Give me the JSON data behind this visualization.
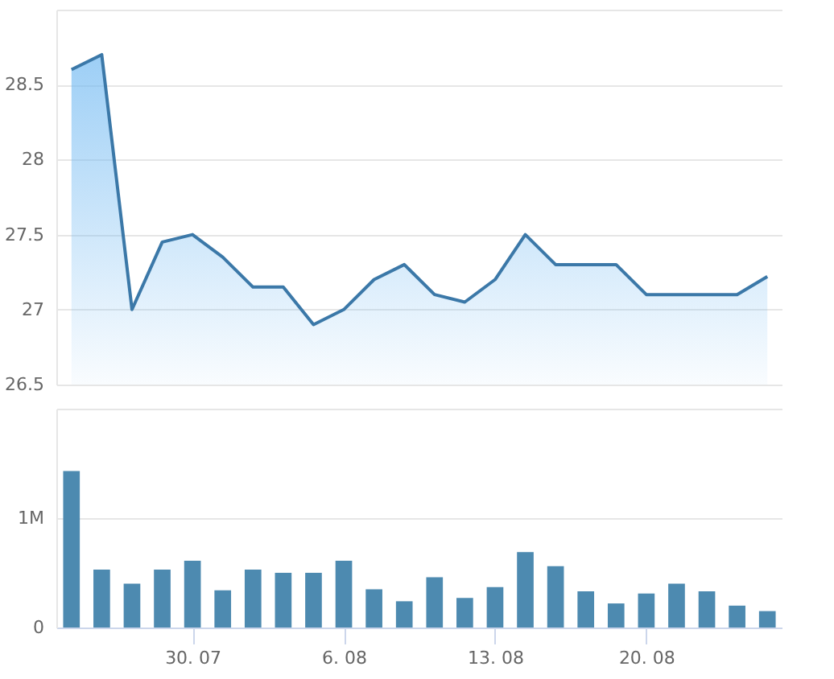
{
  "chart_data": [
    {
      "type": "area",
      "categories": [
        null,
        null,
        null,
        null,
        "30. 07",
        null,
        null,
        null,
        null,
        "6. 08",
        null,
        null,
        null,
        null,
        "13. 08",
        null,
        null,
        null,
        null,
        "20. 08",
        null,
        null,
        null,
        null
      ],
      "series": [
        {
          "color": "#3b78a8",
          "values": [
            28.6,
            28.7,
            27.0,
            27.45,
            27.5,
            27.35,
            27.15,
            27.15,
            26.9,
            27.0,
            27.2,
            27.3,
            27.1,
            27.05,
            27.2,
            27.5,
            27.3,
            27.3,
            27.3,
            27.1,
            27.1,
            27.1,
            27.1,
            27.22
          ]
        }
      ],
      "ylim": [
        26.5,
        29
      ],
      "yticks": [
        26.5,
        27,
        27.5,
        28,
        28.5,
        {
          "value": 29,
          "label": null
        }
      ],
      "grid": "y",
      "tick_labels": "y"
    },
    {
      "type": "bar",
      "categories": [
        null,
        null,
        null,
        null,
        "30. 07",
        null,
        null,
        null,
        null,
        "6. 08",
        null,
        null,
        null,
        null,
        "13. 08",
        null,
        null,
        null,
        null,
        "20. 08",
        null,
        null,
        null,
        null
      ],
      "series": [
        {
          "color": "#4d8ab0",
          "values": [
            1430000,
            530000,
            400000,
            530000,
            610000,
            340000,
            530000,
            500000,
            500000,
            610000,
            350000,
            240000,
            460000,
            270000,
            370000,
            690000,
            560000,
            330000,
            220000,
            310000,
            400000,
            330000,
            200000,
            150000
          ]
        }
      ],
      "ylim": [
        0,
        2000000
      ],
      "yticks": [
        0,
        {
          "value": 1000000,
          "label": "1M"
        },
        {
          "value": 2000000,
          "label": null
        }
      ],
      "grid": "y"
    }
  ]
}
